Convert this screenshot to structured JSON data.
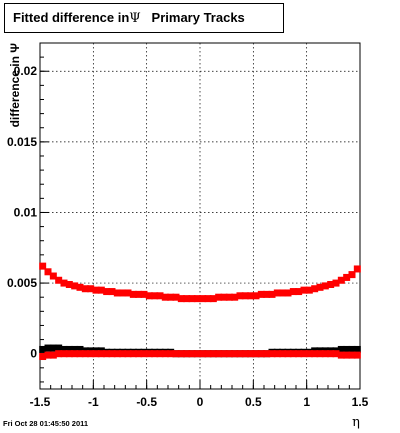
{
  "title": {
    "prefix": "Fitted difference in",
    "symbol": "Ψ",
    "suffix": "Primary Tracks"
  },
  "footer": {
    "timestamp": "Fri Oct 28 01:45:50 2011"
  },
  "colors": {
    "series_black": "#000000",
    "series_red": "#ff0000",
    "grid": "#000000"
  },
  "chart_data": {
    "type": "scatter",
    "xlabel": "η",
    "ylabel": "difference in Ψ",
    "xlim": [
      -1.5,
      1.5
    ],
    "ylim": [
      -0.0025,
      0.022
    ],
    "grid": true,
    "legend": "none",
    "x_ticks": [
      {
        "value": -1.5,
        "label": "-1.5"
      },
      {
        "value": -1,
        "label": "-1"
      },
      {
        "value": -0.5,
        "label": "-0.5"
      },
      {
        "value": 0,
        "label": "0"
      },
      {
        "value": 0.5,
        "label": "0.5"
      },
      {
        "value": 1,
        "label": "1"
      },
      {
        "value": 1.5,
        "label": "1.5"
      }
    ],
    "y_ticks": [
      {
        "value": 0,
        "label": "0"
      },
      {
        "value": 0.005,
        "label": "0.005"
      },
      {
        "value": 0.01,
        "label": "0.01"
      },
      {
        "value": 0.015,
        "label": "0.015"
      },
      {
        "value": 0.02,
        "label": "0.02"
      }
    ],
    "x": [
      -1.475,
      -1.425,
      -1.375,
      -1.325,
      -1.275,
      -1.225,
      -1.175,
      -1.125,
      -1.075,
      -1.025,
      -0.975,
      -0.925,
      -0.875,
      -0.825,
      -0.775,
      -0.725,
      -0.675,
      -0.625,
      -0.575,
      -0.525,
      -0.475,
      -0.425,
      -0.375,
      -0.325,
      -0.275,
      -0.225,
      -0.175,
      -0.125,
      -0.075,
      -0.025,
      0.025,
      0.075,
      0.125,
      0.175,
      0.225,
      0.275,
      0.325,
      0.375,
      0.425,
      0.475,
      0.525,
      0.575,
      0.625,
      0.675,
      0.725,
      0.775,
      0.825,
      0.875,
      0.925,
      0.975,
      1.025,
      1.075,
      1.125,
      1.175,
      1.225,
      1.275,
      1.325,
      1.375,
      1.425,
      1.475
    ],
    "series": [
      {
        "color": "#000000",
        "values": [
          0.0003,
          0.0004,
          0.0004,
          0.0004,
          0.0003,
          0.0003,
          0.0003,
          0.0003,
          0.0002,
          0.0002,
          0.0002,
          0.0002,
          0.0001,
          0.0001,
          0.0001,
          0.0001,
          0.0001,
          0.0001,
          0.0001,
          0.0001,
          0.0001,
          0.0001,
          0.0001,
          0.0001,
          0.0001,
          0.0,
          0.0,
          0.0,
          0.0,
          0.0,
          0.0,
          0.0,
          0.0,
          0.0,
          0.0,
          0.0,
          0.0,
          0.0,
          0.0,
          0.0,
          0.0,
          0.0,
          0.0,
          0.0001,
          0.0001,
          0.0001,
          0.0001,
          0.0001,
          0.0001,
          0.0001,
          0.0001,
          0.0002,
          0.0002,
          0.0002,
          0.0002,
          0.0002,
          0.0003,
          0.0003,
          0.0003,
          0.0003
        ]
      },
      {
        "color": "#ff0000",
        "values": [
          -0.0002,
          -0.0001,
          -0.0001,
          0.0,
          0.0,
          0.0,
          0.0,
          0.0,
          0.0,
          0.0,
          0.0,
          0.0,
          0.0,
          0.0,
          0.0,
          0.0,
          0.0,
          0.0,
          0.0,
          0.0,
          0.0,
          0.0,
          0.0,
          0.0,
          0.0,
          0.0,
          0.0,
          0.0,
          0.0,
          0.0,
          0.0,
          0.0,
          0.0,
          0.0,
          0.0,
          0.0,
          0.0,
          0.0,
          0.0,
          0.0,
          0.0,
          0.0,
          0.0,
          0.0,
          0.0,
          0.0,
          0.0,
          0.0,
          0.0,
          0.0,
          0.0,
          0.0,
          0.0,
          0.0,
          0.0,
          0.0,
          -0.0001,
          -0.0001,
          -0.0001,
          -0.0001
        ]
      },
      {
        "color": "#ff0000",
        "values": [
          0.0062,
          0.0058,
          0.0055,
          0.0052,
          0.005,
          0.0049,
          0.0048,
          0.0047,
          0.0046,
          0.0046,
          0.0045,
          0.0045,
          0.0044,
          0.0044,
          0.0043,
          0.0043,
          0.0043,
          0.0042,
          0.0042,
          0.0042,
          0.0041,
          0.0041,
          0.0041,
          0.004,
          0.004,
          0.004,
          0.0039,
          0.0039,
          0.0039,
          0.0039,
          0.0039,
          0.0039,
          0.0039,
          0.004,
          0.004,
          0.004,
          0.004,
          0.0041,
          0.0041,
          0.0041,
          0.0041,
          0.0042,
          0.0042,
          0.0042,
          0.0043,
          0.0043,
          0.0043,
          0.0044,
          0.0044,
          0.0045,
          0.0045,
          0.0046,
          0.0047,
          0.0048,
          0.0049,
          0.005,
          0.0052,
          0.0054,
          0.0056,
          0.006
        ]
      }
    ]
  }
}
